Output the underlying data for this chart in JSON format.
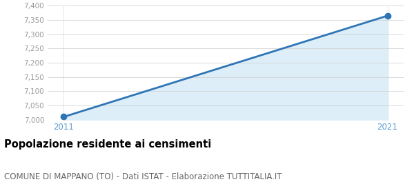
{
  "years": [
    2011,
    2021
  ],
  "values": [
    7010,
    7365
  ],
  "line_color": "#2E75B6",
  "fill_color": "#DDEEF8",
  "marker_color": "#2E75B6",
  "background_color": "#FFFFFF",
  "plot_bg_color": "#FFFFFF",
  "ylim": [
    7000,
    7400
  ],
  "yticks": [
    7000,
    7050,
    7100,
    7150,
    7200,
    7250,
    7300,
    7350,
    7400
  ],
  "grid_color": "#CCCCCC",
  "tick_color_x": "#5B9BD5",
  "tick_color_y": "#999999",
  "title": "Popolazione residente ai censimenti",
  "subtitle": "COMUNE DI MAPPANO (TO) - Dati ISTAT - Elaborazione TUTTITALIA.IT",
  "title_fontsize": 10.5,
  "subtitle_fontsize": 8.5,
  "title_color": "#000000",
  "subtitle_color": "#666666",
  "marker_size": 6,
  "line_width": 2.0
}
